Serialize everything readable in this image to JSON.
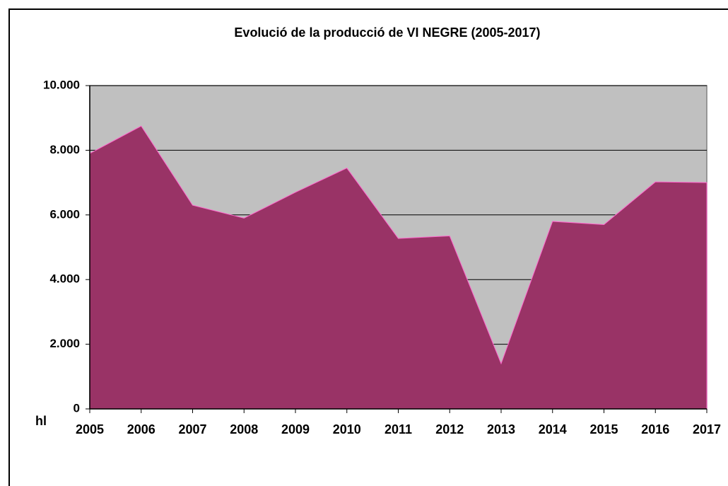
{
  "chart_data": {
    "type": "area",
    "title": "Evolució de la producció de VI NEGRE (2005-2017)",
    "y_label": "hl",
    "categories": [
      "2005",
      "2006",
      "2007",
      "2008",
      "2009",
      "2010",
      "2011",
      "2012",
      "2013",
      "2014",
      "2015",
      "2016",
      "2017"
    ],
    "values": [
      7900,
      8750,
      6300,
      5900,
      6700,
      7450,
      5270,
      5350,
      1400,
      5800,
      5700,
      7020,
      7000
    ],
    "color": "#993366",
    "plot_background": "#c0c0c0",
    "ylim": [
      0,
      10000
    ],
    "yticks": [
      0,
      {
        "value": 2000,
        "label": "2.000"
      },
      {
        "value": 4000,
        "label": "4.000"
      },
      {
        "value": 6000,
        "label": "6.000"
      },
      {
        "value": 8000,
        "label": "8.000"
      },
      {
        "value": 10000,
        "label": "10.000"
      }
    ],
    "grid": true
  }
}
